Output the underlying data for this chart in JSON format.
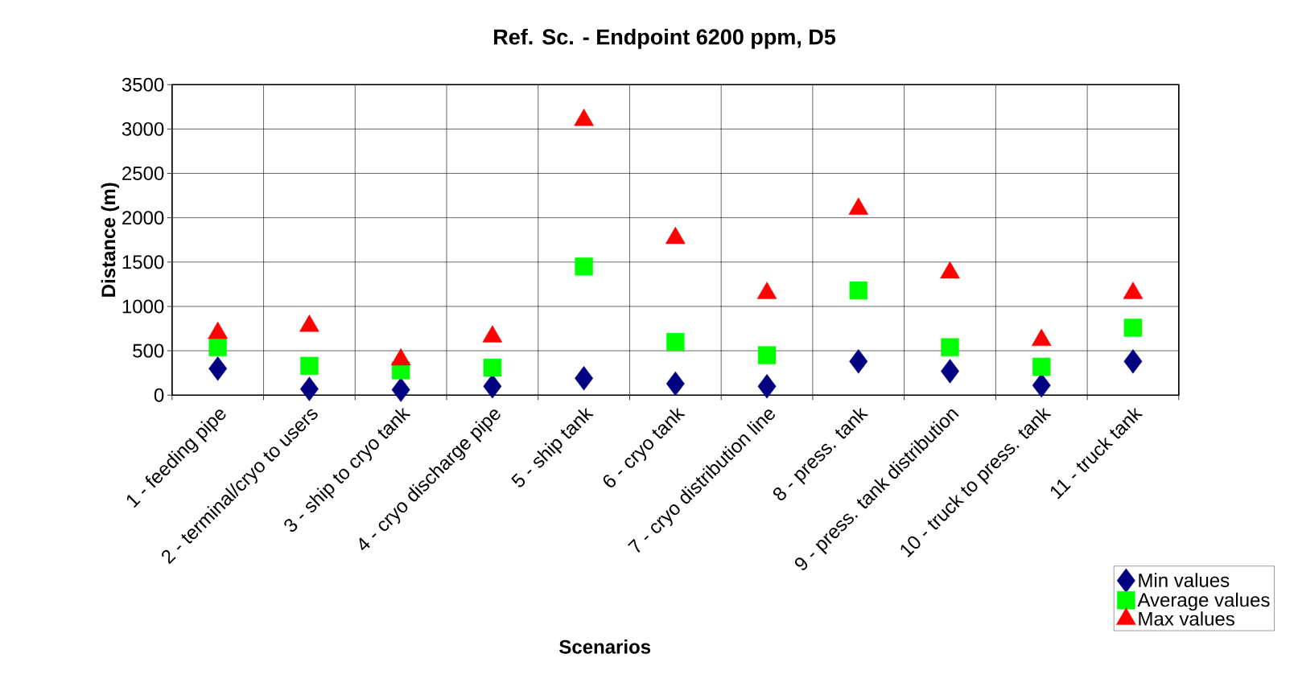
{
  "chart_data": {
    "type": "scatter",
    "title": "Ref. Sc. - Endpoint 6200 ppm, D5",
    "xlabel": "Scenarios",
    "ylabel": "Distance (m)",
    "categories": [
      "1 - feeding pipe",
      "2 - terminal/cryo to users",
      "3 - ship to cryo tank",
      "4 - cryo discharge pipe",
      "5 - ship tank",
      "6 - cryo tank",
      "7 - cryo distribution line",
      "8 - press. tank",
      "9 - press. tank distribution",
      "10 - truck to press. tank",
      "11 - truck tank"
    ],
    "series": [
      {
        "name": "Min values",
        "color": "#000080",
        "marker": "diamond",
        "values": [
          300,
          70,
          60,
          100,
          190,
          130,
          100,
          380,
          270,
          110,
          380
        ]
      },
      {
        "name": "Average values",
        "color": "#00ff00",
        "marker": "square",
        "values": [
          540,
          330,
          280,
          310,
          1450,
          600,
          450,
          1180,
          540,
          320,
          760
        ]
      },
      {
        "name": "Max values",
        "color": "#ff0000",
        "marker": "triangle",
        "values": [
          700,
          780,
          400,
          660,
          3100,
          1770,
          1150,
          2100,
          1380,
          620,
          1150
        ]
      }
    ],
    "ylim": [
      0,
      3500
    ],
    "yticks": [
      0,
      500,
      1000,
      1500,
      2000,
      2500,
      3000,
      3500
    ],
    "grid": true,
    "legend": "bottom right"
  }
}
